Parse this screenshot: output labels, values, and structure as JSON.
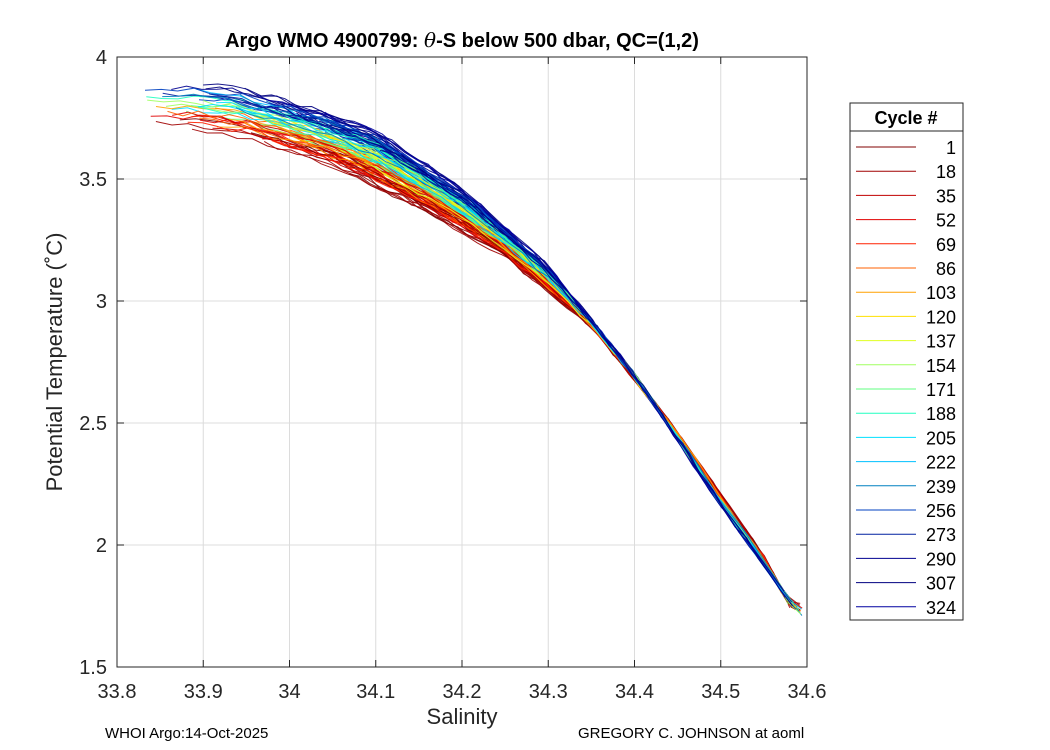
{
  "chart_data": {
    "type": "line",
    "title": {
      "prefix": "Argo WMO 4900799: ",
      "theta": "θ",
      "suffix": "-S below 500 dbar,  QC=(1,2)"
    },
    "xlabel": "Salinity",
    "ylabel": "Potential Temperature (˚C)",
    "xlim": [
      33.8,
      34.6
    ],
    "ylim": [
      1.5,
      4.0
    ],
    "xticks": [
      33.8,
      33.9,
      34.0,
      34.1,
      34.2,
      34.3,
      34.4,
      34.5,
      34.6
    ],
    "xtick_labels": [
      "33.8",
      "33.9",
      "34",
      "34.1",
      "34.2",
      "34.3",
      "34.4",
      "34.5",
      "34.6"
    ],
    "yticks": [
      1.5,
      2.0,
      2.5,
      3.0,
      3.5,
      4.0
    ],
    "ytick_labels": [
      "1.5",
      "2",
      "2.5",
      "3",
      "3.5",
      "4"
    ],
    "grid": true,
    "legend_title": "Cycle #",
    "legend_position": "outside-right",
    "legend": [
      {
        "label": "1",
        "color": "#800000"
      },
      {
        "label": "18",
        "color": "#a00000"
      },
      {
        "label": "35",
        "color": "#c00000"
      },
      {
        "label": "52",
        "color": "#e00000"
      },
      {
        "label": "69",
        "color": "#ff2000"
      },
      {
        "label": "86",
        "color": "#ff6000"
      },
      {
        "label": "103",
        "color": "#ffa000"
      },
      {
        "label": "120",
        "color": "#ffe000"
      },
      {
        "label": "137",
        "color": "#e0ff20"
      },
      {
        "label": "154",
        "color": "#a0ff60"
      },
      {
        "label": "171",
        "color": "#60ff80"
      },
      {
        "label": "188",
        "color": "#20ffc0"
      },
      {
        "label": "205",
        "color": "#00e0ff"
      },
      {
        "label": "222",
        "color": "#00c0ff"
      },
      {
        "label": "239",
        "color": "#0080c0"
      },
      {
        "label": "256",
        "color": "#0040c0"
      },
      {
        "label": "273",
        "color": "#0020a0"
      },
      {
        "label": "290",
        "color": "#000090"
      },
      {
        "label": "307",
        "color": "#000080"
      },
      {
        "label": "324",
        "color": "#0000a0"
      }
    ],
    "envelope": {
      "mean_curve": [
        [
          34.02,
          3.62
        ],
        [
          34.1,
          3.48
        ],
        [
          34.2,
          3.22
        ],
        [
          34.3,
          2.94
        ],
        [
          34.4,
          2.6
        ],
        [
          34.5,
          2.12
        ],
        [
          34.59,
          1.71
        ]
      ],
      "lower_edge": [
        [
          33.82,
          3.72
        ],
        [
          33.95,
          3.66
        ],
        [
          34.05,
          3.55
        ],
        [
          34.15,
          3.38
        ],
        [
          34.25,
          3.18
        ],
        [
          34.35,
          2.9
        ],
        [
          34.45,
          2.46
        ],
        [
          34.55,
          1.95
        ],
        [
          34.58,
          1.75
        ]
      ],
      "upper_edge": [
        [
          33.92,
          3.89
        ],
        [
          34.0,
          3.82
        ],
        [
          34.1,
          3.7
        ],
        [
          34.2,
          3.46
        ],
        [
          34.3,
          3.14
        ],
        [
          34.4,
          2.7
        ],
        [
          34.5,
          2.16
        ],
        [
          34.595,
          1.7
        ]
      ]
    }
  },
  "footer": {
    "left": "WHOI Argo:14-Oct-2025",
    "right": "GREGORY C. JOHNSON at aoml"
  }
}
